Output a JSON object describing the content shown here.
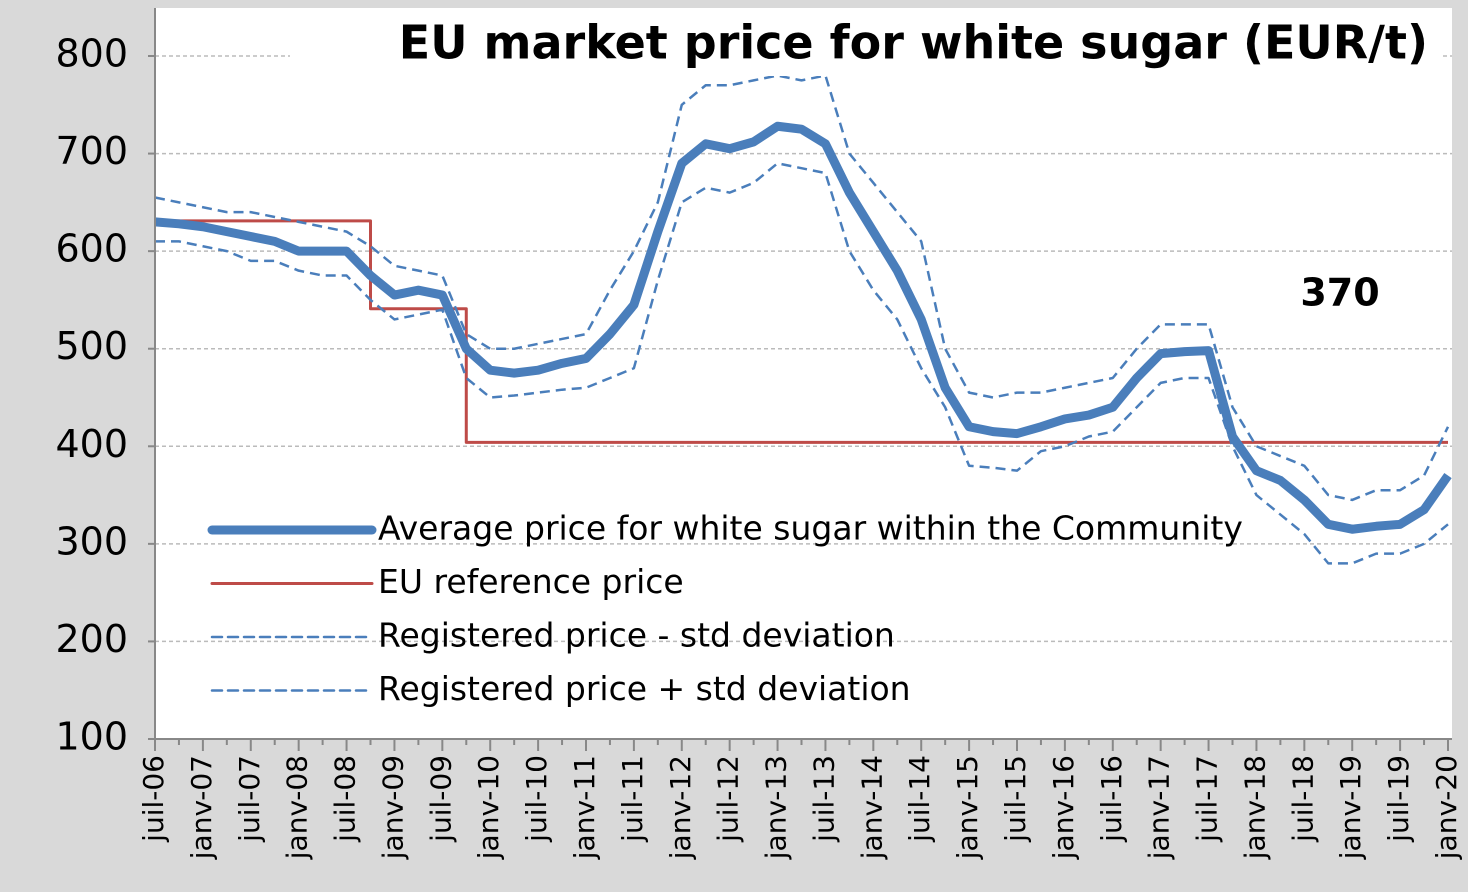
{
  "chart_data": {
    "type": "line",
    "title": "EU market price for white sugar (EUR/t)",
    "annotation": "370",
    "categories": [
      "juil-06",
      null,
      "janv-07",
      null,
      "juil-07",
      null,
      "janv-08",
      null,
      "juil-08",
      null,
      "janv-09",
      null,
      "juil-09",
      null,
      "janv-10",
      null,
      "juil-10",
      null,
      "janv-11",
      null,
      "juil-11",
      null,
      "janv-12",
      null,
      "juil-12",
      null,
      "janv-13",
      null,
      "juil-13",
      null,
      "janv-14",
      null,
      "juil-14",
      null,
      "janv-15",
      null,
      "juil-15",
      null,
      "janv-16",
      null,
      "juil-16",
      null,
      "janv-17",
      null,
      "juil-17",
      null,
      "janv-18",
      null,
      "juil-18",
      null,
      "janv-19",
      null,
      "juil-19",
      null,
      "janv-20"
    ],
    "series": [
      {
        "name": "Average price for white sugar within the Community",
        "color": "#4a7ebb",
        "width": 9,
        "dash": false,
        "values": [
          630,
          628,
          625,
          620,
          615,
          610,
          600,
          600,
          600,
          575,
          555,
          560,
          555,
          500,
          478,
          475,
          478,
          485,
          490,
          515,
          545,
          620,
          690,
          710,
          705,
          712,
          728,
          725,
          710,
          660,
          620,
          580,
          530,
          460,
          420,
          415,
          413,
          420,
          428,
          432,
          440,
          470,
          495,
          497,
          498,
          410,
          375,
          365,
          345,
          320,
          315,
          318,
          320,
          335,
          370
        ]
      },
      {
        "name": "EU reference price",
        "color": "#be4b48",
        "width": 3,
        "dash": false,
        "step": true,
        "values": [
          631,
          631,
          631,
          631,
          631,
          631,
          631,
          631,
          631,
          541,
          541,
          541,
          541,
          404,
          404,
          404,
          404,
          404,
          404,
          404,
          404,
          404,
          404,
          404,
          404,
          404,
          404,
          404,
          404,
          404,
          404,
          404,
          404,
          404,
          404,
          404,
          404,
          404,
          404,
          404,
          404,
          404,
          404,
          404,
          404,
          404,
          404,
          404,
          404,
          404,
          404,
          404,
          404,
          404,
          404
        ]
      },
      {
        "name": "Registered price - std deviation",
        "color": "#4a7ebb",
        "width": 2.5,
        "dash": true,
        "values": [
          610,
          610,
          605,
          600,
          590,
          590,
          580,
          575,
          575,
          550,
          530,
          535,
          540,
          470,
          450,
          452,
          455,
          458,
          460,
          470,
          480,
          570,
          650,
          665,
          660,
          670,
          690,
          685,
          680,
          600,
          560,
          530,
          480,
          440,
          380,
          378,
          375,
          395,
          400,
          410,
          415,
          440,
          465,
          470,
          470,
          400,
          350,
          330,
          310,
          280,
          280,
          290,
          290,
          300,
          320
        ]
      },
      {
        "name": "Registered price + std deviation",
        "color": "#4a7ebb",
        "width": 2.5,
        "dash": true,
        "values": [
          655,
          650,
          645,
          640,
          640,
          635,
          630,
          625,
          620,
          605,
          585,
          580,
          575,
          515,
          500,
          500,
          505,
          510,
          515,
          560,
          600,
          650,
          750,
          770,
          770,
          775,
          780,
          775,
          780,
          700,
          670,
          640,
          610,
          500,
          455,
          450,
          455,
          455,
          460,
          465,
          470,
          500,
          525,
          525,
          525,
          440,
          400,
          390,
          380,
          350,
          345,
          355,
          355,
          370,
          420
        ]
      }
    ],
    "ylim": [
      100,
      800
    ],
    "yticks": [
      100,
      200,
      300,
      400,
      500,
      600,
      700,
      800
    ],
    "grid": true
  }
}
